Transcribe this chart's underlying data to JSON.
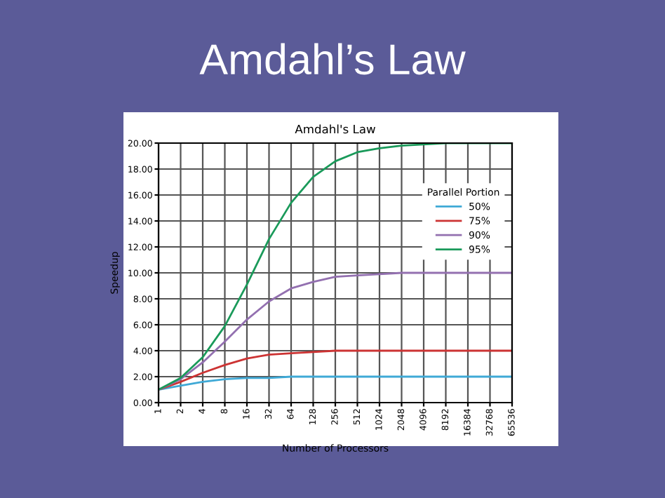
{
  "chart_data": {
    "type": "line",
    "title": "Amdahl’s Law",
    "subtitle": "Amdahl's Law",
    "xlabel": "Number of Processors",
    "ylabel": "Speedup",
    "legend_title": "Parallel Portion",
    "categories": [
      "1",
      "2",
      "4",
      "8",
      "16",
      "32",
      "64",
      "128",
      "256",
      "512",
      "1024",
      "2048",
      "4096",
      "8192",
      "16384",
      "32768",
      "65536"
    ],
    "series": [
      {
        "name": "50%",
        "color": "#3fa9d6",
        "values": [
          1.0,
          1.3,
          1.6,
          1.8,
          1.9,
          1.9,
          2.0,
          2.0,
          2.0,
          2.0,
          2.0,
          2.0,
          2.0,
          2.0,
          2.0,
          2.0,
          2.0
        ]
      },
      {
        "name": "75%",
        "color": "#cc3333",
        "values": [
          1.0,
          1.6,
          2.3,
          2.9,
          3.4,
          3.7,
          3.8,
          3.9,
          4.0,
          4.0,
          4.0,
          4.0,
          4.0,
          4.0,
          4.0,
          4.0,
          4.0
        ]
      },
      {
        "name": "90%",
        "color": "#9370b0",
        "values": [
          1.0,
          1.8,
          3.1,
          4.7,
          6.4,
          7.8,
          8.8,
          9.3,
          9.7,
          9.8,
          9.9,
          10.0,
          10.0,
          10.0,
          10.0,
          10.0,
          10.0
        ]
      },
      {
        "name": "95%",
        "color": "#1a9a5a",
        "values": [
          1.0,
          1.9,
          3.5,
          5.9,
          9.1,
          12.6,
          15.4,
          17.4,
          18.6,
          19.3,
          19.6,
          19.8,
          19.9,
          20.0,
          20.0,
          20.0,
          20.0
        ]
      }
    ],
    "ylim": [
      0,
      20
    ],
    "yticks": [
      {
        "value": 0,
        "label": "0.00"
      },
      {
        "value": 2,
        "label": "2.00"
      },
      {
        "value": 4,
        "label": "4.00"
      },
      {
        "value": 6,
        "label": "6.00"
      },
      {
        "value": 8,
        "label": "8.00"
      },
      {
        "value": 10,
        "label": "10.00"
      },
      {
        "value": 12,
        "label": "12.00"
      },
      {
        "value": 14,
        "label": "14.00"
      },
      {
        "value": 16,
        "label": "16.00"
      },
      {
        "value": 18,
        "label": "18.00"
      },
      {
        "value": 20,
        "label": "20.00"
      }
    ],
    "grid": true,
    "legend": "top right",
    "marker": "none",
    "line_style": "solid"
  }
}
